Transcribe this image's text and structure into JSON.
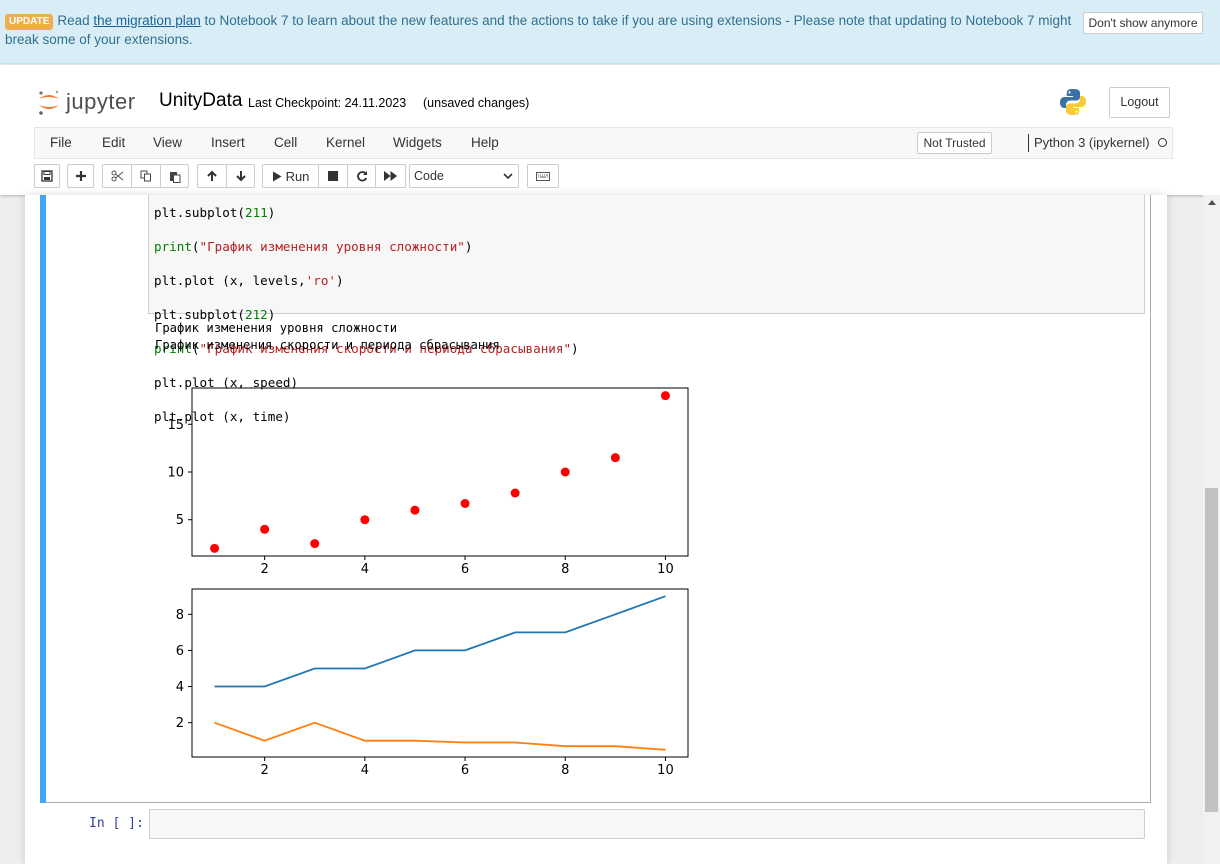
{
  "banner": {
    "badge": "UPDATE",
    "text_before": "Read ",
    "link": "the migration plan",
    "text_after": " to Notebook 7 to learn about the new features and the actions to take if you are using extensions - Please note that updating to Notebook 7 might break some of your extensions.",
    "dismiss_label": "Don't show anymore"
  },
  "header": {
    "logo_text": "jupyter",
    "notebook_name": "UnityData",
    "checkpoint": "Last Checkpoint: 24.11.2023",
    "unsaved": "(unsaved changes)",
    "logout_label": "Logout"
  },
  "menu": {
    "items": [
      "File",
      "Edit",
      "View",
      "Insert",
      "Cell",
      "Kernel",
      "Widgets",
      "Help"
    ],
    "trusted_label": "Not Trusted",
    "kernel_name": "Python 3 (ipykernel)"
  },
  "toolbar": {
    "run_label": "Run",
    "cell_type": "Code"
  },
  "cell": {
    "code_lines": [
      "plt.subplot(211)",
      "print(\"График изменения уровня сложности\")",
      "plt.plot (x, levels,'ro')",
      "plt.subplot(212)",
      "print(\"График изменения скорости и периода сбрасывания\")",
      "plt.plot (x, speed)",
      "plt.plot (x, time)"
    ],
    "output_lines": [
      "График изменения уровня сложности",
      "График изменения скорости и периода сбрасывания"
    ],
    "next_prompt": "In [ ]:"
  },
  "colors": {
    "scatter": "#ff0000",
    "speed": "#1f77b4",
    "time": "#ff7f0e",
    "selected_bar": "#42a5f5"
  },
  "chart_data": [
    {
      "type": "scatter",
      "x": [
        1,
        2,
        3,
        4,
        5,
        6,
        7,
        8,
        9,
        10
      ],
      "series": [
        {
          "values": [
            2,
            4,
            2.5,
            5,
            6,
            6.7,
            7.8,
            10,
            11.5,
            18
          ]
        }
      ],
      "xticks": [
        2,
        4,
        6,
        8,
        10
      ],
      "yticks": [
        5,
        10,
        15
      ],
      "xlim": [
        0.55,
        10.45
      ],
      "ylim": [
        1.2,
        18.8
      ],
      "grid": false
    },
    {
      "type": "line",
      "x": [
        1,
        2,
        3,
        4,
        5,
        6,
        7,
        8,
        9,
        10
      ],
      "series": [
        {
          "values": [
            4,
            4,
            5,
            5,
            6,
            6,
            7,
            7,
            8,
            9
          ]
        },
        {
          "values": [
            2,
            1,
            2,
            1,
            1,
            0.9,
            0.9,
            0.7,
            0.7,
            0.5
          ]
        }
      ],
      "xticks": [
        2,
        4,
        6,
        8,
        10
      ],
      "yticks": [
        2,
        4,
        6,
        8
      ],
      "xlim": [
        0.55,
        10.45
      ],
      "ylim": [
        0.1,
        9.4
      ],
      "grid": false
    }
  ]
}
